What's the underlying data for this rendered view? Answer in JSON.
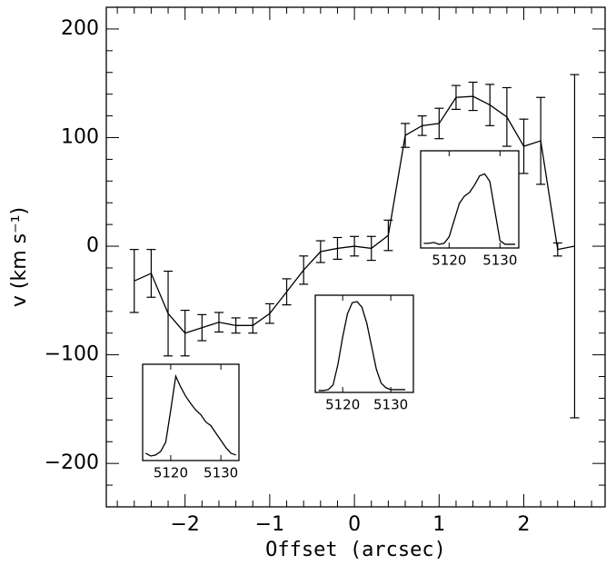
{
  "chart_data": [
    {
      "type": "errorline",
      "color": "#000000",
      "xlabel": "Offset (arcsec)",
      "ylabel": "v (km s⁻¹)",
      "x": [
        -2.6,
        -2.4,
        -2.2,
        -2.0,
        -1.8,
        -1.6,
        -1.4,
        -1.2,
        -1.0,
        -0.8,
        -0.6,
        -0.4,
        -0.2,
        0,
        0.2,
        0.4,
        0.6,
        0.8,
        1.0,
        1.2,
        1.4,
        1.6,
        1.8,
        2.0,
        2.2,
        2.4,
        2.6
      ],
      "values": [
        -32,
        -25,
        -62,
        -80,
        -75,
        -70,
        -73,
        -73,
        -62,
        -42,
        -22,
        -5,
        -2,
        0,
        -2,
        10,
        102,
        111,
        113,
        137,
        138,
        130,
        119,
        92,
        97,
        -3,
        0
      ],
      "errors": [
        29,
        22,
        39,
        21,
        12,
        9,
        7,
        7,
        9,
        12,
        13,
        10,
        10,
        9,
        11,
        14,
        11,
        9,
        14,
        11,
        13,
        19,
        27,
        25,
        40,
        6,
        158
      ],
      "xlim": [
        -2.93,
        2.96
      ],
      "ylim": [
        -240,
        220
      ],
      "xticks": [
        {
          "value": -2,
          "label": "−2"
        },
        {
          "value": -1,
          "label": "−1"
        },
        0,
        1,
        2
      ],
      "yticks": [
        {
          "value": -200,
          "label": "−200"
        },
        {
          "value": -100,
          "label": "−100"
        },
        0,
        100,
        200
      ],
      "xminorticks": [
        -2.8,
        -2.6,
        -2.4,
        -2.2,
        -1.8,
        -1.6,
        -1.4,
        -1.2,
        -0.8,
        -0.6,
        -0.4,
        -0.2,
        0.2,
        0.4,
        0.6,
        0.8,
        1.2,
        1.4,
        1.6,
        1.8,
        2.2,
        2.4,
        2.6,
        2.8
      ],
      "yminorticks": [
        -220,
        -180,
        -160,
        -140,
        -120,
        -80,
        -60,
        -40,
        -20,
        20,
        40,
        60,
        80,
        120,
        140,
        160,
        180
      ]
    },
    {
      "type": "line",
      "color": "#000000",
      "x": [
        5115,
        5116,
        5117,
        5118,
        5119,
        5120,
        5121,
        5122,
        5123,
        5124,
        5125,
        5126,
        5127,
        5128,
        5129,
        5130,
        5131,
        5132,
        5133
      ],
      "values": [
        0.08,
        0.05,
        0.06,
        0.1,
        0.2,
        0.55,
        0.92,
        0.8,
        0.7,
        0.62,
        0.55,
        0.5,
        0.42,
        0.38,
        0.3,
        0.22,
        0.14,
        0.08,
        0.06
      ],
      "xlim": [
        5114.4,
        5133.6
      ],
      "ylim": [
        0,
        1.05
      ],
      "xticks": [
        5120,
        5130
      ]
    },
    {
      "type": "line",
      "color": "#000000",
      "x": [
        5115,
        5116,
        5117,
        5118,
        5119,
        5120,
        5121,
        5122,
        5123,
        5124,
        5125,
        5126,
        5127,
        5128,
        5129,
        5130,
        5131,
        5132,
        5133
      ],
      "values": [
        0.02,
        0.02,
        0.03,
        0.08,
        0.3,
        0.6,
        0.85,
        0.97,
        0.98,
        0.92,
        0.75,
        0.5,
        0.25,
        0.1,
        0.05,
        0.03,
        0.03,
        0.03,
        0.03
      ],
      "xlim": [
        5114.3,
        5134.7
      ],
      "ylim": [
        0,
        1.05
      ],
      "xticks": [
        5120,
        5130
      ]
    },
    {
      "type": "line",
      "color": "#000000",
      "x": [
        5115,
        5116,
        5117,
        5118,
        5119,
        5120,
        5121,
        5122,
        5123,
        5124,
        5125,
        5126,
        5127,
        5128,
        5129,
        5130,
        5131,
        5132,
        5133
      ],
      "values": [
        0.05,
        0.05,
        0.06,
        0.04,
        0.05,
        0.12,
        0.3,
        0.48,
        0.56,
        0.6,
        0.68,
        0.78,
        0.8,
        0.72,
        0.4,
        0.08,
        0.04,
        0.04,
        0.04
      ],
      "xlim": [
        5114.4,
        5133.7
      ],
      "ylim": [
        0,
        1.05
      ],
      "xticks": [
        5120,
        5130
      ]
    }
  ]
}
